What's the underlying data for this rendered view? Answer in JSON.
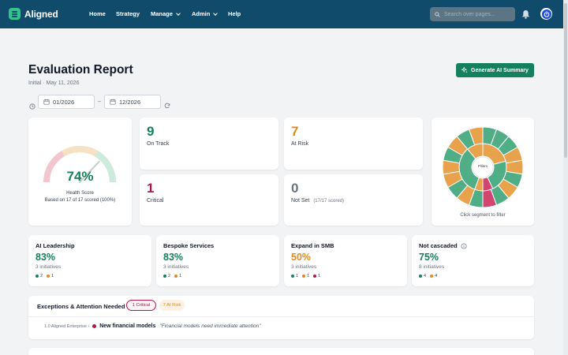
{
  "nav": {
    "brand": "Aligned",
    "items": [
      "Home",
      "Strategy",
      "Manage",
      "Admin",
      "Help"
    ],
    "search_placeholder": "Search over pages..."
  },
  "header": {
    "title": "Evaluation Report",
    "subtitle": "Initial · May 11, 2026",
    "ai_button": "Generate AI Summary"
  },
  "date_range": {
    "from": "01/2026",
    "sep": "–",
    "to": "12/2026"
  },
  "health": {
    "percent": "74%",
    "value": 0.74,
    "label": "Health Score",
    "detail": "Based on 17 of 17 scored (100%)"
  },
  "stats": {
    "on_track": {
      "value": "9",
      "label": "On Track"
    },
    "at_risk": {
      "value": "7",
      "label": "At Risk"
    },
    "critical": {
      "value": "1",
      "label": "Critical"
    },
    "not_set": {
      "value": "0",
      "label": "Not Set",
      "detail": "(17/17 scored)"
    }
  },
  "sunburst": {
    "center_label": "Pillars",
    "hint": "Click segment to filter"
  },
  "initiatives": [
    {
      "name": "AI Leadership",
      "pct": "83%",
      "count": "3 initiatives",
      "green": "2",
      "amber": "1",
      "red": ""
    },
    {
      "name": "Bespoke Services",
      "pct": "83%",
      "count": "3 initiatives",
      "green": "2",
      "amber": "1",
      "red": ""
    },
    {
      "name": "Expand in SMB",
      "pct": "50%",
      "count": "3 initiatives",
      "green": "1",
      "amber": "1",
      "red": "1"
    },
    {
      "name": "Not cascaded",
      "pct": "75%",
      "count": "8 initiatives",
      "green": "4",
      "amber": "4",
      "red": ""
    }
  ],
  "exceptions": {
    "title": "Exceptions & Attention Needed",
    "critical_pill": "1 Critical",
    "atrisk_pill": "7 At Risk",
    "row": {
      "prefix": "1.0 Aligned Enterprise ›",
      "name": "New financial models",
      "note": "\"Financial models need immediate attention\""
    }
  },
  "colors": {
    "nav": "#114b6b",
    "green": "#14805e",
    "amber": "#e08a1e",
    "red": "#b0194a",
    "grey": "#6b7280"
  }
}
